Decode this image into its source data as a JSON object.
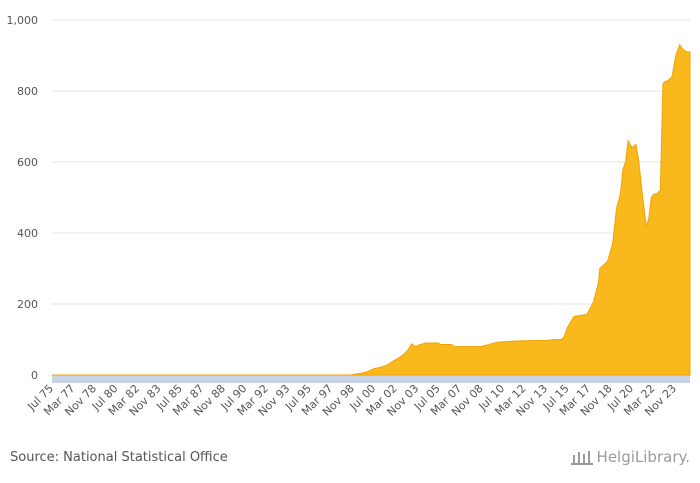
{
  "chart_data": {
    "type": "area",
    "title": "",
    "xlabel": "",
    "ylabel": "",
    "ylim": [
      0,
      1000
    ],
    "yticks": [
      0,
      200,
      400,
      600,
      800,
      1000
    ],
    "ytick_labels": [
      "0",
      "200",
      "400",
      "600",
      "800",
      "1,000"
    ],
    "xtick_labels": [
      "Jul 75",
      "Mar 77",
      "Nov 78",
      "Jul 80",
      "Mar 82",
      "Nov 83",
      "Jul 85",
      "Mar 87",
      "Nov 88",
      "Jul 90",
      "Mar 92",
      "Nov 93",
      "Jul 95",
      "Mar 97",
      "Nov 98",
      "Jul 00",
      "Mar 02",
      "Nov 03",
      "Jul 05",
      "Mar 07",
      "Nov 08",
      "Jul 10",
      "Mar 12",
      "Nov 13",
      "Jul 15",
      "Mar 17",
      "Nov 18",
      "Jul 20",
      "Mar 22",
      "Nov 23"
    ],
    "x": [
      1975.5,
      1998.6,
      1999.0,
      1999.5,
      2000.0,
      2000.5,
      2001.0,
      2001.5,
      2002.0,
      2002.5,
      2003.0,
      2003.2,
      2003.4,
      2003.7,
      2004.0,
      2004.5,
      2005.0,
      2005.5,
      2005.6,
      2006.0,
      2006.5,
      2006.7,
      2007.0,
      2008.0,
      2008.8,
      2009.0,
      2009.3,
      2010.0,
      2011.0,
      2012.0,
      2013.0,
      2014.0,
      2014.5,
      2015.0,
      2015.2,
      2015.5,
      2016.0,
      2016.9,
      2017.0,
      2017.5,
      2017.9,
      2018.0,
      2018.3,
      2018.6,
      2019.0,
      2019.3,
      2019.6,
      2019.8,
      2020.0,
      2020.2,
      2020.5,
      2020.8,
      2021.0,
      2021.3,
      2021.6,
      2021.8,
      2022.0,
      2022.2,
      2022.4,
      2022.7,
      2022.9,
      2023.0,
      2023.3,
      2023.6,
      2023.9,
      2024.2,
      2024.5,
      2024.8,
      2025.0
    ],
    "series": [
      {
        "values": [
          0,
          0,
          2,
          5,
          10,
          18,
          22,
          28,
          40,
          50,
          65,
          75,
          88,
          80,
          85,
          90,
          90,
          90,
          86,
          86,
          86,
          80,
          80,
          80,
          80,
          82,
          85,
          92,
          95,
          96,
          97,
          98,
          100,
          100,
          105,
          135,
          165,
          170,
          170,
          205,
          260,
          300,
          310,
          320,
          370,
          470,
          510,
          580,
          600,
          660,
          640,
          650,
          610,
          510,
          420,
          440,
          500,
          510,
          510,
          520,
          820,
          825,
          830,
          840,
          900,
          930,
          915,
          910,
          910
        ]
      }
    ],
    "colors": {
      "fill": "#F9B91C",
      "stroke": "#F2A300",
      "band": "#C9D3E6"
    }
  },
  "footer": {
    "source": "Source: National Statistical Office",
    "logo_text": "HelgiLibrary."
  }
}
